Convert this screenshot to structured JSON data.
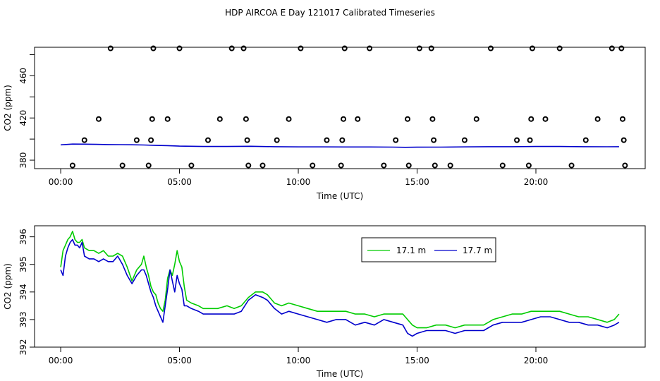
{
  "title": "HDP AIRCOA E  Day 121017  Calibrated Timeseries",
  "chart_data": [
    {
      "type": "scatter",
      "xlabel": "Time (UTC)",
      "ylabel": "CO2 (ppm)",
      "xlim": [
        -1.1,
        24.6
      ],
      "ylim": [
        372,
        487
      ],
      "x_ticks": [
        0,
        5,
        10,
        15,
        20
      ],
      "x_tick_labels": [
        "00:00",
        "05:00",
        "10:00",
        "15:00",
        "20:00"
      ],
      "y_ticks": [
        380,
        420,
        460
      ],
      "y_tick_labels": [
        "380",
        "420",
        "460"
      ],
      "grid": false,
      "series": [
        {
          "color": "#0000cc",
          "x": [
            0,
            0.5,
            1,
            1.5,
            2,
            2.5,
            3,
            3.5,
            4,
            4.5,
            5,
            5.5,
            6,
            7,
            8,
            9,
            10,
            11,
            12,
            13,
            14,
            14.5,
            15,
            16,
            17,
            18,
            19,
            20,
            21,
            22,
            23,
            23.5
          ],
          "y": [
            394.5,
            395.3,
            395.2,
            395.0,
            394.8,
            394.7,
            394.6,
            394.4,
            394.0,
            393.8,
            393.3,
            393.2,
            393.0,
            393.0,
            393.2,
            392.8,
            392.6,
            392.6,
            392.5,
            392.5,
            392.4,
            392.2,
            392.3,
            392.4,
            392.6,
            392.8,
            392.8,
            393.0,
            393.0,
            392.8,
            392.7,
            392.8
          ]
        },
        {
          "color": "#000000",
          "marker": "circle",
          "x": [
            0.5,
            1.0,
            1.6,
            2.1,
            2.6,
            3.2,
            3.7,
            3.8,
            3.85,
            3.9,
            4.5,
            5.0,
            5.5,
            6.2,
            6.7,
            7.2,
            7.7,
            7.8,
            7.85,
            7.9,
            8.5,
            9.1,
            9.6,
            10.1,
            10.6,
            11.2,
            11.8,
            11.85,
            11.9,
            11.95,
            12.5,
            13.0,
            13.6,
            14.1,
            14.6,
            14.65,
            15.1,
            15.6,
            15.65,
            15.7,
            15.75,
            16.4,
            17.0,
            17.5,
            18.1,
            18.6,
            19.2,
            19.7,
            19.75,
            19.8,
            19.85,
            20.4,
            21.0,
            21.5,
            22.1,
            22.6,
            23.2,
            23.6,
            23.65,
            23.7,
            23.75
          ],
          "y": [
            375,
            399,
            419,
            486,
            375,
            399,
            375,
            399,
            419,
            486,
            419,
            486,
            375,
            399,
            419,
            486,
            486,
            419,
            399,
            375,
            375,
            399,
            419,
            486,
            375,
            399,
            375,
            399,
            419,
            486,
            419,
            486,
            375,
            399,
            419,
            375,
            486,
            486,
            419,
            399,
            375,
            375,
            399,
            419,
            486,
            375,
            399,
            375,
            399,
            419,
            486,
            419,
            486,
            375,
            399,
            419,
            486,
            486,
            419,
            399,
            375
          ]
        }
      ]
    },
    {
      "type": "line",
      "xlabel": "Time (UTC)",
      "ylabel": "CO2 (ppm)",
      "xlim": [
        -1.1,
        24.6
      ],
      "ylim": [
        392,
        396.4
      ],
      "x_ticks": [
        0,
        5,
        10,
        15,
        20
      ],
      "x_tick_labels": [
        "00:00",
        "05:00",
        "10:00",
        "15:00",
        "20:00"
      ],
      "y_ticks": [
        392,
        393,
        394,
        395,
        396
      ],
      "y_tick_labels": [
        "392",
        "393",
        "394",
        "395",
        "396"
      ],
      "grid": false,
      "legend": "top-right",
      "series": [
        {
          "name": "17.1 m",
          "color": "#00cc00",
          "x": [
            0.0,
            0.1,
            0.2,
            0.3,
            0.4,
            0.5,
            0.6,
            0.7,
            0.8,
            0.9,
            1.0,
            1.2,
            1.4,
            1.6,
            1.8,
            2.0,
            2.2,
            2.4,
            2.6,
            2.8,
            3.0,
            3.2,
            3.4,
            3.5,
            3.6,
            3.7,
            3.8,
            3.9,
            4.0,
            4.1,
            4.2,
            4.3,
            4.4,
            4.5,
            4.6,
            4.7,
            4.8,
            4.9,
            5.0,
            5.1,
            5.2,
            5.3,
            5.5,
            5.8,
            6.0,
            6.3,
            6.6,
            7.0,
            7.3,
            7.6,
            7.9,
            8.2,
            8.5,
            8.7,
            9.0,
            9.3,
            9.6,
            10.0,
            10.4,
            10.8,
            11.2,
            11.6,
            12.0,
            12.4,
            12.8,
            13.2,
            13.6,
            14.0,
            14.4,
            14.6,
            14.8,
            15.0,
            15.4,
            15.8,
            16.2,
            16.6,
            17.0,
            17.4,
            17.8,
            18.2,
            18.6,
            19.0,
            19.4,
            19.8,
            20.2,
            20.6,
            21.0,
            21.4,
            21.8,
            22.2,
            22.6,
            23.0,
            23.3,
            23.5
          ],
          "y": [
            394.9,
            395.5,
            395.7,
            395.9,
            396.0,
            396.2,
            395.9,
            395.8,
            395.8,
            395.9,
            395.6,
            395.5,
            395.5,
            395.4,
            395.5,
            395.3,
            395.3,
            395.4,
            395.3,
            394.9,
            394.4,
            394.8,
            395.0,
            395.3,
            394.9,
            394.6,
            394.2,
            394.0,
            393.9,
            393.6,
            393.4,
            393.3,
            393.7,
            394.5,
            394.8,
            394.6,
            395.0,
            395.5,
            395.1,
            394.9,
            394.2,
            393.7,
            393.6,
            393.5,
            393.4,
            393.4,
            393.4,
            393.5,
            393.4,
            393.5,
            393.8,
            394.0,
            394.0,
            393.9,
            393.6,
            393.5,
            393.6,
            393.5,
            393.4,
            393.3,
            393.3,
            393.3,
            393.3,
            393.2,
            393.2,
            393.1,
            393.2,
            393.2,
            393.2,
            393.0,
            392.8,
            392.7,
            392.7,
            392.8,
            392.8,
            392.7,
            392.8,
            392.8,
            392.8,
            393.0,
            393.1,
            393.2,
            393.2,
            393.3,
            393.3,
            393.3,
            393.3,
            393.2,
            393.1,
            393.1,
            393.0,
            392.9,
            393.0,
            393.2
          ]
        },
        {
          "name": "17.7 m",
          "color": "#0000cc",
          "x": [
            0.0,
            0.1,
            0.2,
            0.3,
            0.4,
            0.5,
            0.6,
            0.7,
            0.8,
            0.9,
            1.0,
            1.2,
            1.4,
            1.6,
            1.8,
            2.0,
            2.2,
            2.4,
            2.6,
            2.8,
            3.0,
            3.2,
            3.4,
            3.5,
            3.6,
            3.7,
            3.8,
            3.9,
            4.0,
            4.1,
            4.2,
            4.3,
            4.4,
            4.5,
            4.6,
            4.7,
            4.8,
            4.9,
            5.0,
            5.1,
            5.2,
            5.3,
            5.5,
            5.8,
            6.0,
            6.3,
            6.6,
            7.0,
            7.3,
            7.6,
            7.9,
            8.2,
            8.5,
            8.7,
            9.0,
            9.3,
            9.6,
            10.0,
            10.4,
            10.8,
            11.2,
            11.6,
            12.0,
            12.4,
            12.8,
            13.2,
            13.6,
            14.0,
            14.4,
            14.6,
            14.8,
            15.0,
            15.4,
            15.8,
            16.2,
            16.6,
            17.0,
            17.4,
            17.8,
            18.2,
            18.6,
            19.0,
            19.4,
            19.8,
            20.2,
            20.6,
            21.0,
            21.4,
            21.8,
            22.2,
            22.6,
            23.0,
            23.3,
            23.5
          ],
          "y": [
            394.8,
            394.6,
            395.3,
            395.6,
            395.8,
            395.9,
            395.7,
            395.7,
            395.6,
            395.8,
            395.3,
            395.2,
            395.2,
            395.1,
            395.2,
            395.1,
            395.1,
            395.3,
            395.0,
            394.6,
            394.3,
            394.6,
            394.8,
            394.8,
            394.6,
            394.3,
            394.0,
            393.8,
            393.5,
            393.3,
            393.1,
            392.9,
            393.5,
            394.1,
            394.8,
            394.4,
            394.0,
            394.6,
            394.3,
            394.1,
            393.5,
            393.5,
            393.4,
            393.3,
            393.2,
            393.2,
            393.2,
            393.2,
            393.2,
            393.3,
            393.7,
            393.9,
            393.8,
            393.7,
            393.4,
            393.2,
            393.3,
            393.2,
            393.1,
            393.0,
            392.9,
            393.0,
            393.0,
            392.8,
            392.9,
            392.8,
            393.0,
            392.9,
            392.8,
            392.5,
            392.4,
            392.5,
            392.6,
            392.6,
            392.6,
            392.5,
            392.6,
            392.6,
            392.6,
            392.8,
            392.9,
            392.9,
            392.9,
            393.0,
            393.1,
            393.1,
            393.0,
            392.9,
            392.9,
            392.8,
            392.8,
            392.7,
            392.8,
            392.9
          ]
        }
      ]
    }
  ]
}
